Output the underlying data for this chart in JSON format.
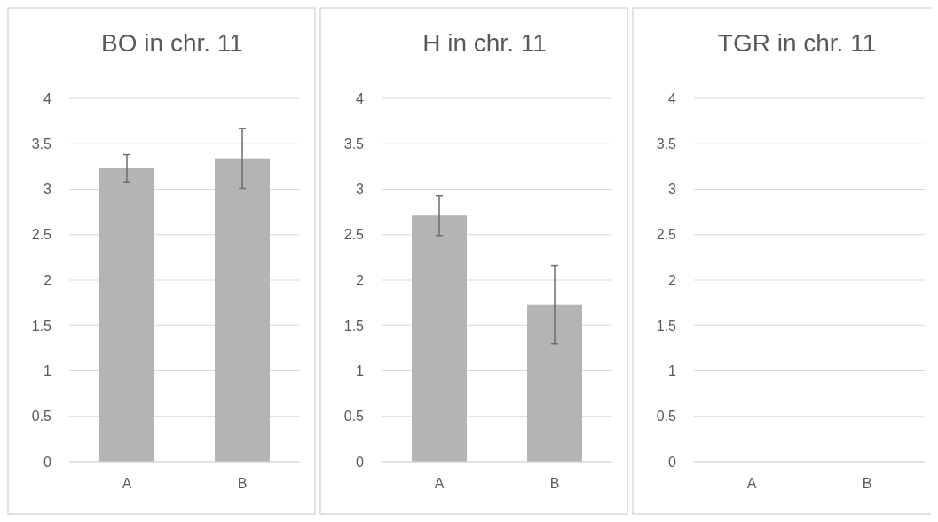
{
  "chart_data": [
    {
      "type": "bar",
      "title": "BO in chr. 11",
      "categories": [
        "A",
        "B"
      ],
      "values": [
        3.23,
        3.34
      ],
      "errors": [
        0.15,
        0.33
      ],
      "color": "#b4b4b4",
      "ylim": [
        0,
        4
      ],
      "yticks": [
        0,
        {
          "value": 0.5,
          "label": "0.5"
        },
        1,
        {
          "value": 1.5,
          "label": "1.5"
        },
        2,
        {
          "value": 2.5,
          "label": "2.5"
        },
        3,
        {
          "value": 3.5,
          "label": "3.5"
        },
        4
      ],
      "grid": "y"
    },
    {
      "type": "bar",
      "title": "H in chr. 11",
      "categories": [
        "A",
        "B"
      ],
      "values": [
        2.71,
        1.73
      ],
      "errors": [
        0.22,
        0.43
      ],
      "color": "#b4b4b4",
      "ylim": [
        0,
        4
      ],
      "yticks": [
        0,
        {
          "value": 0.5,
          "label": "0.5"
        },
        1,
        {
          "value": 1.5,
          "label": "1.5"
        },
        2,
        {
          "value": 2.5,
          "label": "2.5"
        },
        3,
        {
          "value": 3.5,
          "label": "3.5"
        },
        4
      ],
      "grid": "y"
    },
    {
      "type": "bar",
      "title": "TGR in chr. 11",
      "categories": [
        "A",
        "B"
      ],
      "values": [
        0,
        0
      ],
      "color": "#b4b4b4",
      "ylim": [
        0,
        4
      ],
      "yticks": [
        0,
        {
          "value": 0.5,
          "label": "0.5"
        },
        1,
        {
          "value": 1.5,
          "label": "1.5"
        },
        2,
        {
          "value": 2.5,
          "label": "2.5"
        },
        3,
        {
          "value": 3.5,
          "label": "3.5"
        },
        4
      ],
      "grid": "y"
    }
  ]
}
